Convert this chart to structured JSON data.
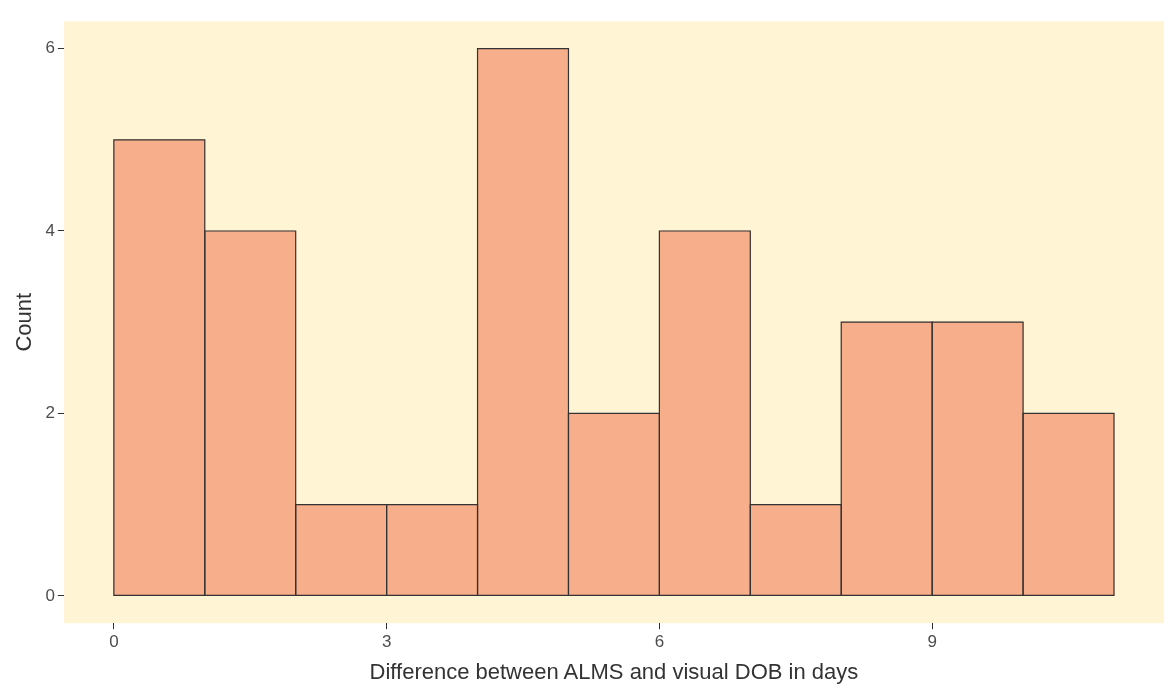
{
  "chart_data": {
    "type": "histogram",
    "xlabel": "Difference between ALMS and visual DOB in days",
    "ylabel": "Count",
    "bins": [
      0,
      1,
      2,
      3,
      4,
      5,
      6,
      7,
      8,
      9,
      10,
      11
    ],
    "values": [
      5,
      4,
      1,
      1,
      6,
      2,
      4,
      1,
      3,
      3,
      2
    ],
    "color": "#f7ae8a",
    "xlim": [
      -0.55,
      11.55
    ],
    "xticks": [
      0,
      3,
      6,
      9
    ],
    "ylim": [
      -0.3,
      6.3
    ],
    "yticks": [
      0,
      2,
      4,
      6
    ],
    "grid": false,
    "legend": false
  }
}
